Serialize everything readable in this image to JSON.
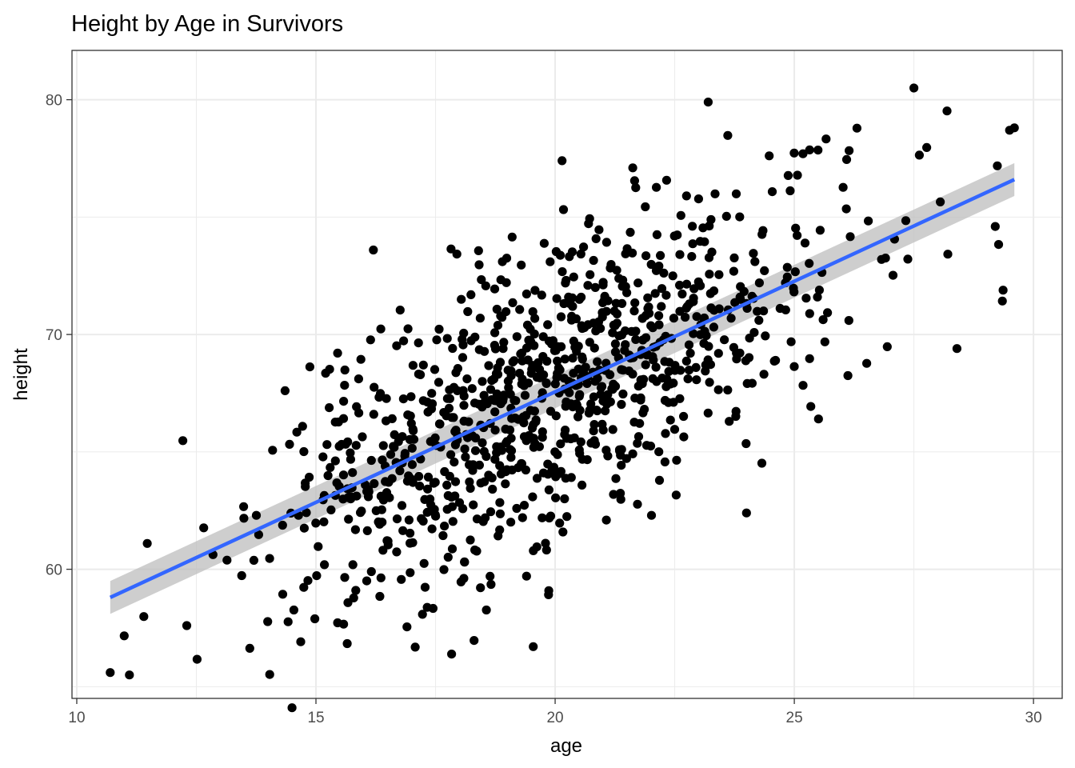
{
  "chart_data": {
    "type": "scatter",
    "title": "Height by Age in Survivors",
    "xlabel": "age",
    "ylabel": "height",
    "xlim": [
      9.9,
      30.6
    ],
    "ylim": [
      54.5,
      82.1
    ],
    "xticks": [
      10,
      15,
      20,
      25,
      30
    ],
    "yticks": [
      60,
      70,
      80
    ],
    "grid": true,
    "legend": "none",
    "theme": "bw",
    "colors": {
      "points": "#000000",
      "fit_line": "#3366ff",
      "confidence_band": "#bdbdbd",
      "grid": "#ebebeb",
      "panel_border": "#333333",
      "tick_text": "#4d4d4d"
    },
    "fit": {
      "method": "linear",
      "x": [
        10.7,
        29.6
      ],
      "y": [
        58.8,
        76.6
      ],
      "ci_halfwidth": [
        0.7,
        0.7
      ]
    },
    "points": {
      "count": 1000,
      "seed": 7,
      "x_mean": 20.0,
      "x_sd": 3.0,
      "x_range": [
        10.7,
        29.6
      ],
      "y_intercept": 48.7,
      "y_slope": 0.94,
      "y_resid_sd": 3.2,
      "y_range": [
        54.0,
        80.6
      ],
      "notable": [
        {
          "x": 10.7,
          "y": 55.6
        },
        {
          "x": 11.1,
          "y": 55.5
        },
        {
          "x": 14.5,
          "y": 54.1
        },
        {
          "x": 23.2,
          "y": 79.9
        },
        {
          "x": 27.5,
          "y": 80.5
        },
        {
          "x": 29.6,
          "y": 78.8
        },
        {
          "x": 29.5,
          "y": 78.7
        },
        {
          "x": 28.4,
          "y": 69.4
        },
        {
          "x": 29.2,
          "y": 74.6
        },
        {
          "x": 16.2,
          "y": 73.6
        },
        {
          "x": 24.0,
          "y": 62.4
        },
        {
          "x": 12.3,
          "y": 57.6
        }
      ]
    }
  }
}
